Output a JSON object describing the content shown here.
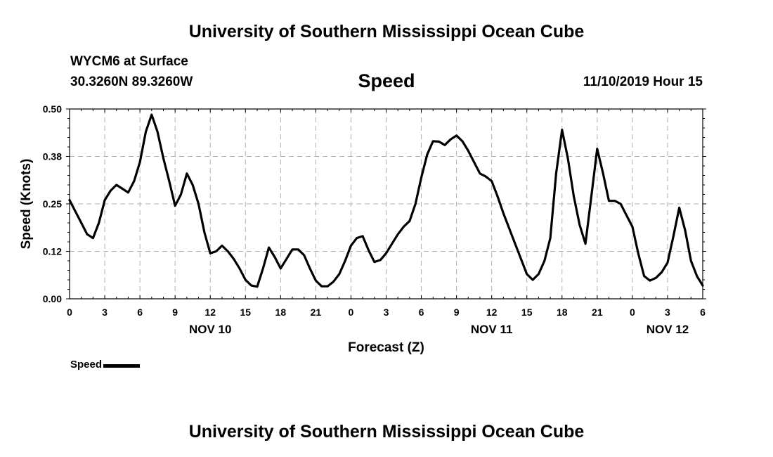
{
  "header": {
    "title": "University of Southern Mississippi Ocean Cube",
    "station": "WYCM6 at Surface",
    "coords": "30.3260N 89.3260W",
    "variable": "Speed",
    "datetime": "11/10/2019 Hour 15"
  },
  "footer": {
    "title": "University of Southern Mississippi Ocean Cube"
  },
  "legend": {
    "label": "Speed",
    "color": "#000000"
  },
  "chart_data": {
    "type": "line",
    "xlabel": "Forecast (Z)",
    "ylabel": "Speed (Knots)",
    "xlim": [
      0,
      54
    ],
    "ylim": [
      0,
      0.5
    ],
    "grid": true,
    "x_tick_values": [
      0,
      3,
      6,
      9,
      12,
      15,
      18,
      21,
      24,
      27,
      30,
      33,
      36,
      39,
      42,
      45,
      48,
      51,
      54
    ],
    "x_tick_labels": [
      "0",
      "3",
      "6",
      "9",
      "12",
      "15",
      "18",
      "21",
      "0",
      "3",
      "6",
      "9",
      "12",
      "15",
      "18",
      "21",
      "0",
      "3",
      "6"
    ],
    "y_tick_values": [
      0,
      0.125,
      0.25,
      0.375,
      0.5
    ],
    "y_tick_labels": [
      "0.00",
      "0.12",
      "0.25",
      "0.38",
      "0.50"
    ],
    "date_labels": [
      {
        "x": 12,
        "label": "NOV 10"
      },
      {
        "x": 36,
        "label": "NOV 11"
      },
      {
        "x": 51,
        "label": "NOV 12"
      }
    ],
    "series": [
      {
        "name": "Speed",
        "color": "#000000",
        "x": [
          0,
          0.5,
          1,
          1.5,
          2,
          2.5,
          3,
          3.5,
          4,
          4.5,
          5,
          5.5,
          6,
          6.5,
          7,
          7.5,
          8,
          8.5,
          9,
          9.5,
          10,
          10.5,
          11,
          11.5,
          12,
          12.5,
          13,
          13.5,
          14,
          14.5,
          15,
          15.5,
          16,
          16.5,
          17,
          17.5,
          18,
          18.5,
          19,
          19.5,
          20,
          20.5,
          21,
          21.5,
          22,
          22.5,
          23,
          23.5,
          24,
          24.5,
          25,
          25.5,
          26,
          26.5,
          27,
          27.5,
          28,
          28.5,
          29,
          29.5,
          30,
          30.5,
          31,
          31.5,
          32,
          32.5,
          33,
          33.5,
          34,
          34.5,
          35,
          35.5,
          36,
          36.5,
          37,
          37.5,
          38,
          38.5,
          39,
          39.5,
          40,
          40.5,
          41,
          41.5,
          42,
          42.5,
          43,
          43.5,
          44,
          44.5,
          45,
          45.5,
          46,
          46.5,
          47,
          47.5,
          48,
          48.5,
          49,
          49.5,
          50,
          50.5,
          51,
          51.5,
          52,
          52.5,
          53,
          53.5,
          54
        ],
        "values": [
          0.26,
          0.23,
          0.2,
          0.17,
          0.16,
          0.2,
          0.26,
          0.285,
          0.3,
          0.29,
          0.28,
          0.31,
          0.36,
          0.44,
          0.485,
          0.44,
          0.37,
          0.31,
          0.245,
          0.275,
          0.33,
          0.3,
          0.25,
          0.175,
          0.12,
          0.125,
          0.14,
          0.125,
          0.105,
          0.08,
          0.05,
          0.035,
          0.032,
          0.08,
          0.135,
          0.11,
          0.08,
          0.105,
          0.13,
          0.13,
          0.115,
          0.08,
          0.048,
          0.033,
          0.033,
          0.045,
          0.065,
          0.1,
          0.14,
          0.16,
          0.165,
          0.128,
          0.097,
          0.102,
          0.12,
          0.145,
          0.17,
          0.19,
          0.205,
          0.25,
          0.32,
          0.38,
          0.415,
          0.414,
          0.405,
          0.42,
          0.43,
          0.415,
          0.39,
          0.36,
          0.33,
          0.322,
          0.31,
          0.27,
          0.225,
          0.185,
          0.145,
          0.105,
          0.065,
          0.05,
          0.065,
          0.1,
          0.16,
          0.33,
          0.445,
          0.37,
          0.27,
          0.195,
          0.145,
          0.27,
          0.395,
          0.33,
          0.258,
          0.258,
          0.25,
          0.22,
          0.19,
          0.12,
          0.06,
          0.048,
          0.055,
          0.07,
          0.095,
          0.165,
          0.24,
          0.18,
          0.1,
          0.06,
          0.035
        ]
      }
    ]
  }
}
